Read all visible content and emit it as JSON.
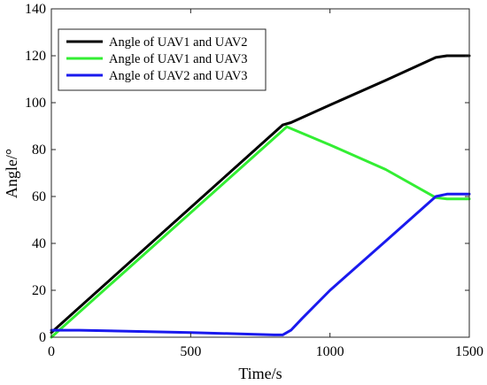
{
  "chart_data": {
    "type": "line",
    "xlabel": "Time/s",
    "ylabel": "Angle/°",
    "xlim": [
      0,
      1500
    ],
    "ylim": [
      0,
      140
    ],
    "xticks": [
      0,
      500,
      1000,
      1500
    ],
    "yticks": [
      0,
      20,
      40,
      60,
      80,
      100,
      120,
      140
    ],
    "grid": false,
    "legend_position": "top-left",
    "series": [
      {
        "name": "Angle of UAV1 and UAV2",
        "color": "#000000",
        "points": [
          [
            0,
            2
          ],
          [
            830,
            90.5
          ],
          [
            860,
            91.5
          ],
          [
            1000,
            99
          ],
          [
            1200,
            109.5
          ],
          [
            1380,
            119.3
          ],
          [
            1420,
            120
          ],
          [
            1500,
            120
          ]
        ]
      },
      {
        "name": "Angle of UAV1 and UAV3",
        "color": "#33ee33",
        "points": [
          [
            0,
            0
          ],
          [
            845,
            89.7
          ],
          [
            1000,
            82
          ],
          [
            1200,
            71.5
          ],
          [
            1380,
            59.5
          ],
          [
            1420,
            59
          ],
          [
            1500,
            59
          ]
        ]
      },
      {
        "name": "Angle of UAV2 and UAV3",
        "color": "#1a1aee",
        "points": [
          [
            0,
            3
          ],
          [
            100,
            3
          ],
          [
            500,
            2
          ],
          [
            800,
            1
          ],
          [
            830,
            1
          ],
          [
            860,
            3
          ],
          [
            900,
            8
          ],
          [
            1000,
            20
          ],
          [
            1200,
            41
          ],
          [
            1380,
            60
          ],
          [
            1420,
            61
          ],
          [
            1500,
            61
          ]
        ]
      }
    ]
  }
}
